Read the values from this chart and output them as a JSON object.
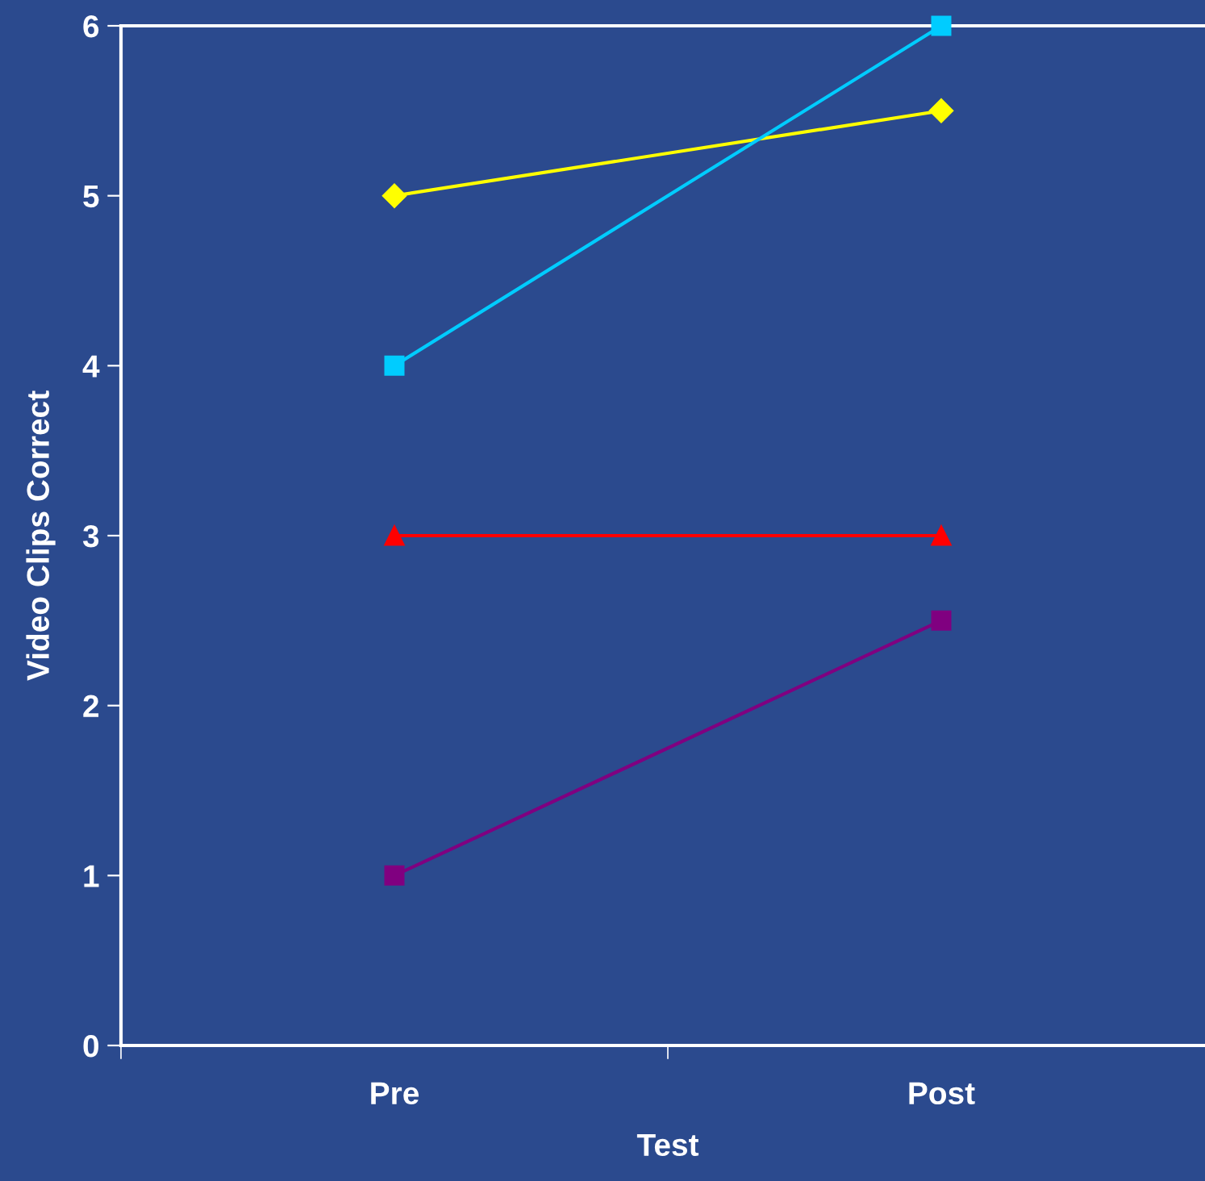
{
  "chart_data": {
    "type": "line",
    "xlabel": "Test",
    "ylabel": "Video Clips Correct",
    "categories": [
      "Pre",
      "Post"
    ],
    "ylim": [
      0,
      6
    ],
    "yticks": [
      0,
      1,
      2,
      3,
      4,
      5,
      6
    ],
    "grid": false,
    "legend": false,
    "series": [
      {
        "color": "#ffff00",
        "marker": "diamond",
        "values": [
          5,
          5.5
        ]
      },
      {
        "color": "#00ccff",
        "marker": "square",
        "values": [
          4,
          6
        ]
      },
      {
        "color": "#ff0000",
        "marker": "triangle",
        "values": [
          3,
          3
        ]
      },
      {
        "color": "#800080",
        "marker": "square",
        "values": [
          1,
          2.5
        ]
      }
    ]
  }
}
